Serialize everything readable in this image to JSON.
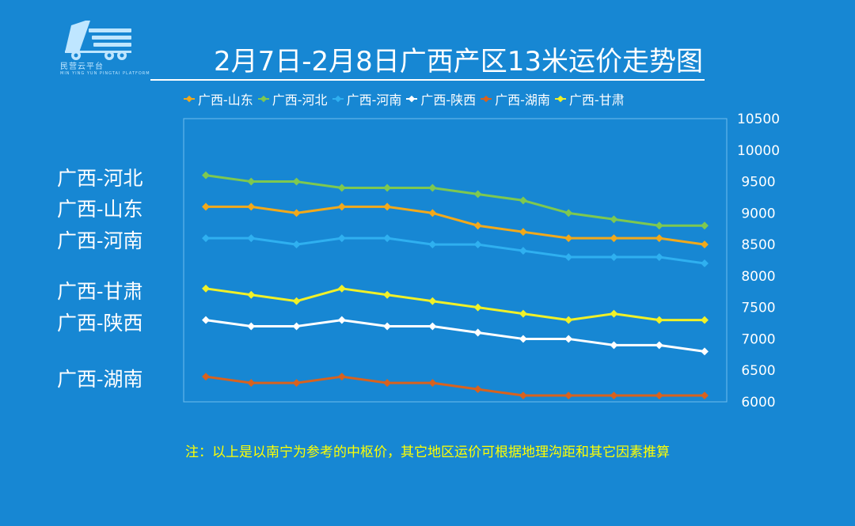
{
  "header": {
    "title": "2月7日-2月8日广西产区13米运价走势图",
    "logo_text": "民营云平台",
    "logo_subtext": "MIN YING YUN PINGTAI PLATFORM"
  },
  "note": "注：以上是以南宁为参考的中枢价，其它地区运价可根据地理沟距和其它因素推算",
  "side_labels": [
    {
      "text": "广西-河北",
      "value": 9600
    },
    {
      "text": "广西-山东",
      "value": 9100
    },
    {
      "text": "广西-河南",
      "value": 8600
    },
    {
      "text": "广西-甘肃",
      "value": 7800
    },
    {
      "text": "广西-陕西",
      "value": 7300
    },
    {
      "text": "广西-湖南",
      "value": 6400
    }
  ],
  "chart_data": {
    "type": "line",
    "title": "2月7日-2月8日广西产区13米运价走势图",
    "xlabel": "",
    "ylabel": "",
    "ylim": [
      6000,
      10500
    ],
    "yticks": [
      6000,
      6500,
      7000,
      7500,
      8000,
      8500,
      9000,
      9500,
      10000,
      10500
    ],
    "y_axis_side": "right",
    "grid": false,
    "legend_position": "top",
    "x": [
      1,
      2,
      3,
      4,
      5,
      6,
      7,
      8,
      9,
      10,
      11,
      12
    ],
    "series": [
      {
        "name": "广西-山东",
        "color": "#f2a91b",
        "values": [
          9100,
          9100,
          9000,
          9100,
          9100,
          9000,
          8800,
          8700,
          8600,
          8600,
          8600,
          8500
        ]
      },
      {
        "name": "广西-河北",
        "color": "#7ec850",
        "values": [
          9600,
          9500,
          9500,
          9400,
          9400,
          9400,
          9300,
          9200,
          9000,
          8900,
          8800,
          8800
        ]
      },
      {
        "name": "广西-河南",
        "color": "#2fb0f0",
        "values": [
          8600,
          8600,
          8500,
          8600,
          8600,
          8500,
          8500,
          8400,
          8300,
          8300,
          8300,
          8200
        ]
      },
      {
        "name": "广西-陕西",
        "color": "#ffffff",
        "values": [
          7300,
          7200,
          7200,
          7300,
          7200,
          7200,
          7100,
          7000,
          7000,
          6900,
          6900,
          6800
        ]
      },
      {
        "name": "广西-湖南",
        "color": "#d8621e",
        "values": [
          6400,
          6300,
          6300,
          6400,
          6300,
          6300,
          6200,
          6100,
          6100,
          6100,
          6100,
          6100
        ]
      },
      {
        "name": "广西-甘肃",
        "color": "#f0f028",
        "values": [
          7800,
          7700,
          7600,
          7800,
          7700,
          7600,
          7500,
          7400,
          7300,
          7400,
          7300,
          7300
        ]
      }
    ]
  }
}
